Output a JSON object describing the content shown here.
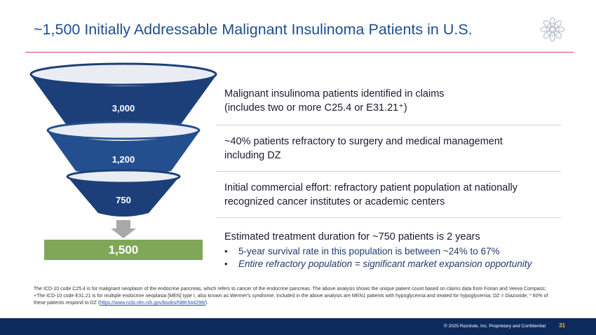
{
  "title": "~1,500 Initially Addressable Malignant Insulinoma Patients in U.S.",
  "logo_icon": "mandala-logo-icon",
  "funnel": {
    "stages": [
      {
        "value": "3,000"
      },
      {
        "value": "1,200"
      },
      {
        "value": "750"
      }
    ],
    "arrow_icon": "down-arrow-icon",
    "total": "1,500",
    "colors": {
      "dark": "#1c3f7a",
      "mid": "#244f8f",
      "rim": "#e9edf3",
      "total": "#7ea858",
      "arrow": "#a8a8a8"
    }
  },
  "descriptions": [
    {
      "line1": "Malignant insulinoma patients identified in claims",
      "line2": "(includes two or more C25.4 or E31.21⁺)"
    },
    {
      "line1": "~40% patients refractory to surgery and medical management",
      "line2": "including DZ"
    },
    {
      "line1": "Initial commercial effort: refractory patient population at nationally",
      "line2": "recognized cancer institutes or academic centers"
    }
  ],
  "treatment": {
    "heading": "Estimated treatment duration for ~750 patients is 2 years",
    "bullets": [
      "5-year survival rate in this population is between ~24% to 67%",
      "Entire refractory population = significant market expansion opportunity"
    ],
    "bullet_char": "•"
  },
  "footnote": {
    "line1": "The ICD-10 code C25.4 is for malignant neoplasm of the endocrine pancreas, which refers to cancer of the endocrine pancreas. The above analysis shows the unique patient count based on claims data from Forian and Veeva Compass;",
    "line2": "+The ICD-10 code E31.21 is for multiple endocrine neoplasia [MEN] type I, also known as Wermer's syndrome. Included in the above analysis are MEN1 patients with hypoglycemia and treated for hypoglycemia; DZ = Diazoxide; * 60% of",
    "line3_prefix": "these patients respond to DZ (",
    "link": "https://www.ncbi.nlm.nih.gov/books/NBK544299/",
    "line3_suffix": ")."
  },
  "footer": {
    "copyright": "© 2025 Rezolute, Inc. Proprietary and Confidential",
    "page": "31"
  }
}
